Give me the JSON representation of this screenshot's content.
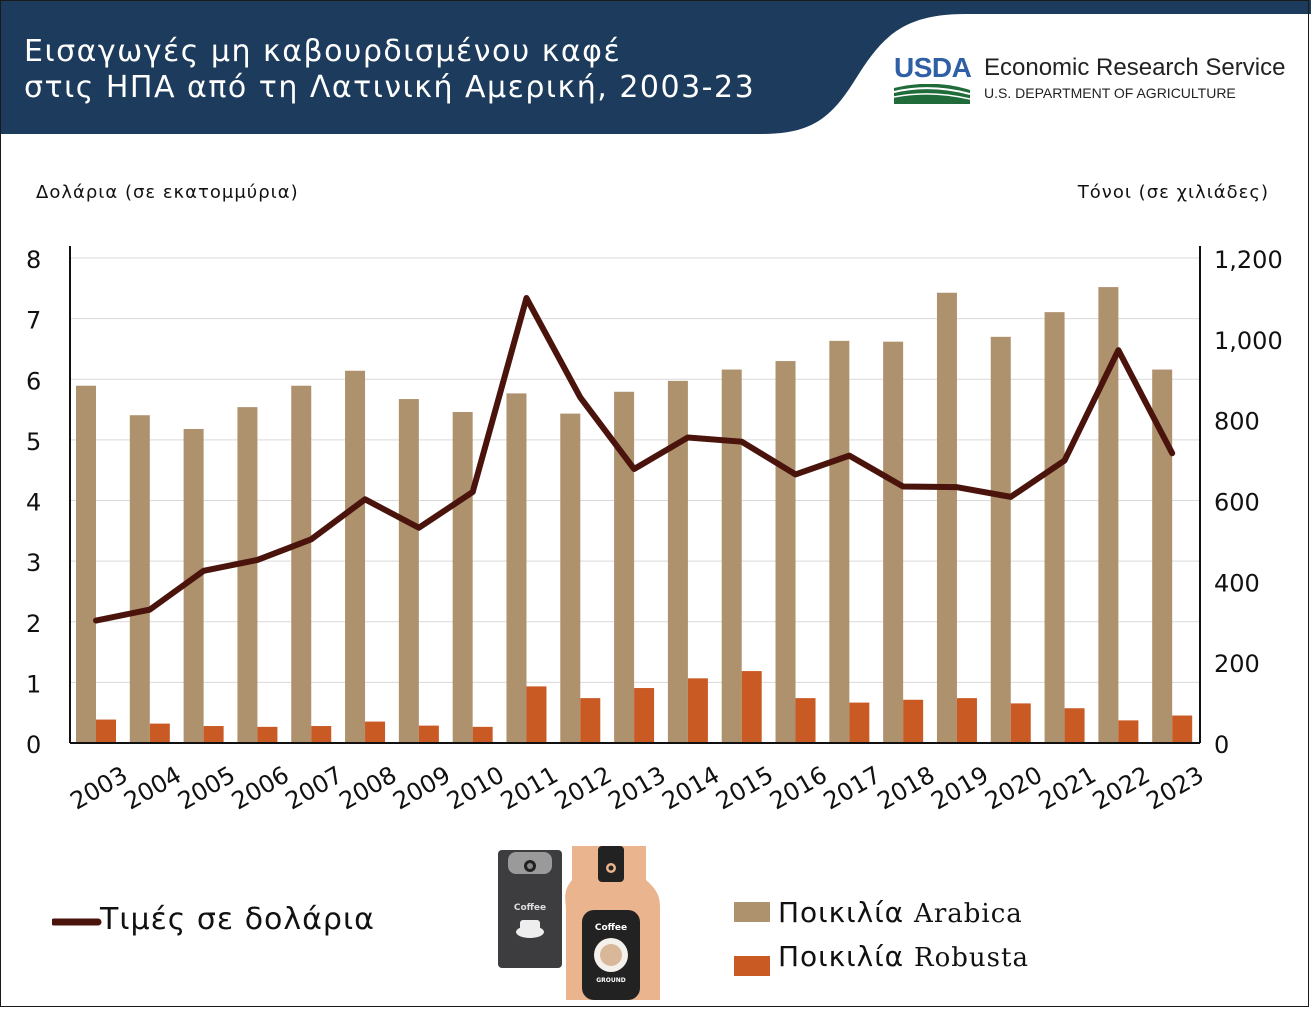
{
  "header": {
    "title_line1": "Εισαγωγές μη καβουρδισμένου καφέ",
    "title_line2": "στις ΗΠΑ από τη Λατινική Αμερική, 2003-23",
    "logo_word": "USDA",
    "agency": "Economic Research Service",
    "department": "U.S. DEPARTMENT OF AGRICULTURE"
  },
  "colors": {
    "header_bg": "#1d3b5c",
    "arabica": "#ae916d",
    "robusta": "#c95a24",
    "price_line": "#4a140d"
  },
  "chart_data": {
    "type": "bar",
    "categories": [
      "2003",
      "2004",
      "2005",
      "2006",
      "2007",
      "2008",
      "2009",
      "2010",
      "2011",
      "2012",
      "2013",
      "2014",
      "2015",
      "2016",
      "2017",
      "2018",
      "2019",
      "2020",
      "2021",
      "2022",
      "2023"
    ],
    "ylabel_left": "Δολάρια (σε εκατομμύρια)",
    "ylabel_right": "Τόνοι (σε χιλιάδες)",
    "left_axis": {
      "ylim": [
        0,
        8
      ],
      "ticks": [
        "0",
        "1",
        "2",
        "3",
        "4",
        "5",
        "6",
        "7",
        "8"
      ]
    },
    "right_axis": {
      "ylim": [
        0,
        1200
      ],
      "ticks": [
        "0",
        "200",
        "400",
        "600",
        "800",
        "1,000",
        "1,200"
      ]
    },
    "grid": true,
    "series": [
      {
        "name": "Ποικιλία Arabica",
        "type": "bar",
        "axis": "right",
        "values": [
          884,
          811,
          777,
          831,
          884,
          921,
          851,
          819,
          865,
          815,
          869,
          896,
          924,
          945,
          995,
          993,
          1114,
          1005,
          1066,
          1128,
          924
        ]
      },
      {
        "name": "Ποικιλία Robusta",
        "type": "bar",
        "axis": "right",
        "values": [
          58,
          48,
          42,
          40,
          42,
          53,
          43,
          40,
          140,
          111,
          136,
          160,
          178,
          111,
          100,
          107,
          111,
          98,
          86,
          56,
          68
        ]
      },
      {
        "name": "Τιμές σε δολάρια",
        "type": "line",
        "axis": "left",
        "values": [
          2.02,
          2.2,
          2.84,
          3.02,
          3.36,
          4.02,
          3.55,
          4.14,
          7.34,
          5.7,
          4.52,
          5.04,
          4.97,
          4.43,
          4.74,
          4.23,
          4.22,
          4.06,
          4.66,
          6.48,
          4.78
        ]
      }
    ]
  },
  "legend": {
    "price_prefix": "Τιμές σε δολάρια",
    "arabica_greek": "Ποικιλία",
    "arabica_latin": "Arabica",
    "robusta_greek": "Ποικιλία",
    "robusta_latin": "Robusta"
  },
  "image": {
    "bag_left_label": "Coffee",
    "bag_right_label": "Coffee",
    "bag_right_sub": "GROUND"
  }
}
